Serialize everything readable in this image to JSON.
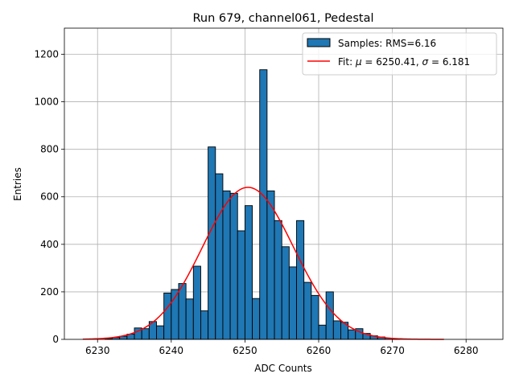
{
  "chart_data": {
    "type": "bar",
    "title": "Run 679, channel061, Pedestal",
    "xlabel": "ADC Counts",
    "ylabel": "Entries",
    "xlim": [
      6225.5,
      6285.0
    ],
    "ylim": [
      0,
      1310
    ],
    "xticks": [
      6230,
      6240,
      6250,
      6260,
      6270,
      6280
    ],
    "yticks": [
      0,
      200,
      400,
      600,
      800,
      1000,
      1200
    ],
    "grid": true,
    "legend_position": "top-right",
    "bin_width": 1,
    "histogram": {
      "name": "Samples: RMS=6.16",
      "color": "#1f77b4",
      "bin_starts": [
        6231,
        6232,
        6233,
        6234,
        6235,
        6236,
        6237,
        6238,
        6239,
        6240,
        6241,
        6242,
        6243,
        6244,
        6245,
        6246,
        6247,
        6248,
        6249,
        6250,
        6251,
        6252,
        6253,
        6254,
        6255,
        6256,
        6257,
        6258,
        6259,
        6260,
        6261,
        6262,
        6263,
        6264,
        6265,
        6266,
        6267,
        6268,
        6269,
        6270
      ],
      "values": [
        3,
        8,
        13,
        22,
        48,
        45,
        75,
        57,
        195,
        210,
        235,
        170,
        308,
        120,
        810,
        697,
        625,
        615,
        457,
        563,
        172,
        1135,
        625,
        500,
        390,
        305,
        500,
        240,
        185,
        60,
        200,
        78,
        72,
        40,
        45,
        25,
        15,
        10,
        5,
        2
      ]
    },
    "fit": {
      "name_prefix": "Fit: ",
      "mu_symbol": "μ",
      "mu": "6250.41",
      "sigma_symbol": "σ",
      "sigma": "6.181",
      "mu_value": 6250.41,
      "sigma_value": 6.181,
      "amplitude": 640,
      "x_range": [
        6228,
        6277
      ],
      "color": "#ff0000"
    }
  }
}
